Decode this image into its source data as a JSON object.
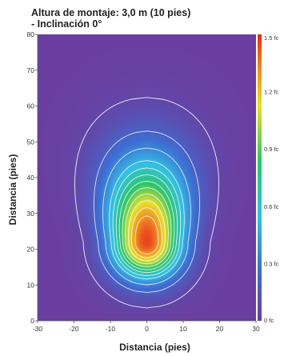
{
  "chart_data": {
    "type": "heatmap",
    "title_lines": [
      "Altura de montaje: 3,0 m (10 pies)",
      "- Inclinación 0°"
    ],
    "xlabel": "Distancia (pies)",
    "ylabel": "Distancia (pies)",
    "xlim": [
      -30,
      30
    ],
    "ylim": [
      0,
      80
    ],
    "x_ticks": [
      -30,
      -20,
      -10,
      0,
      10,
      20,
      30
    ],
    "y_ticks": [
      0,
      10,
      20,
      30,
      40,
      50,
      60,
      70,
      80
    ],
    "x_tick_labels": [
      "-30",
      "-20",
      "-10",
      "0",
      "10",
      "20",
      "30"
    ],
    "y_tick_labels": [
      "0",
      "10",
      "20",
      "30",
      "40",
      "50",
      "60",
      "70",
      "80"
    ],
    "colorbar": {
      "min": 0,
      "max": 1.5,
      "unit": "fc",
      "tick_values": [
        0,
        0.3,
        0.6,
        0.9,
        1.2,
        1.5
      ],
      "tick_labels": [
        "0 fc",
        "0.3 fc",
        "0.6 fc",
        "0.9 fc",
        "1.2 fc",
        "1.5 fc"
      ],
      "colors": [
        "#6a3ea0",
        "#3d6fd3",
        "#34c0e4",
        "#2ec56a",
        "#e7e02c",
        "#f08c24",
        "#e42a1c"
      ]
    },
    "peak": {
      "x": 0,
      "y": 22,
      "value": 1.45
    },
    "contour_levels": [
      0.05,
      0.2,
      0.35,
      0.5,
      0.6,
      0.7,
      0.8,
      0.9,
      1.0,
      1.1,
      1.2,
      1.3
    ],
    "grid": false
  }
}
